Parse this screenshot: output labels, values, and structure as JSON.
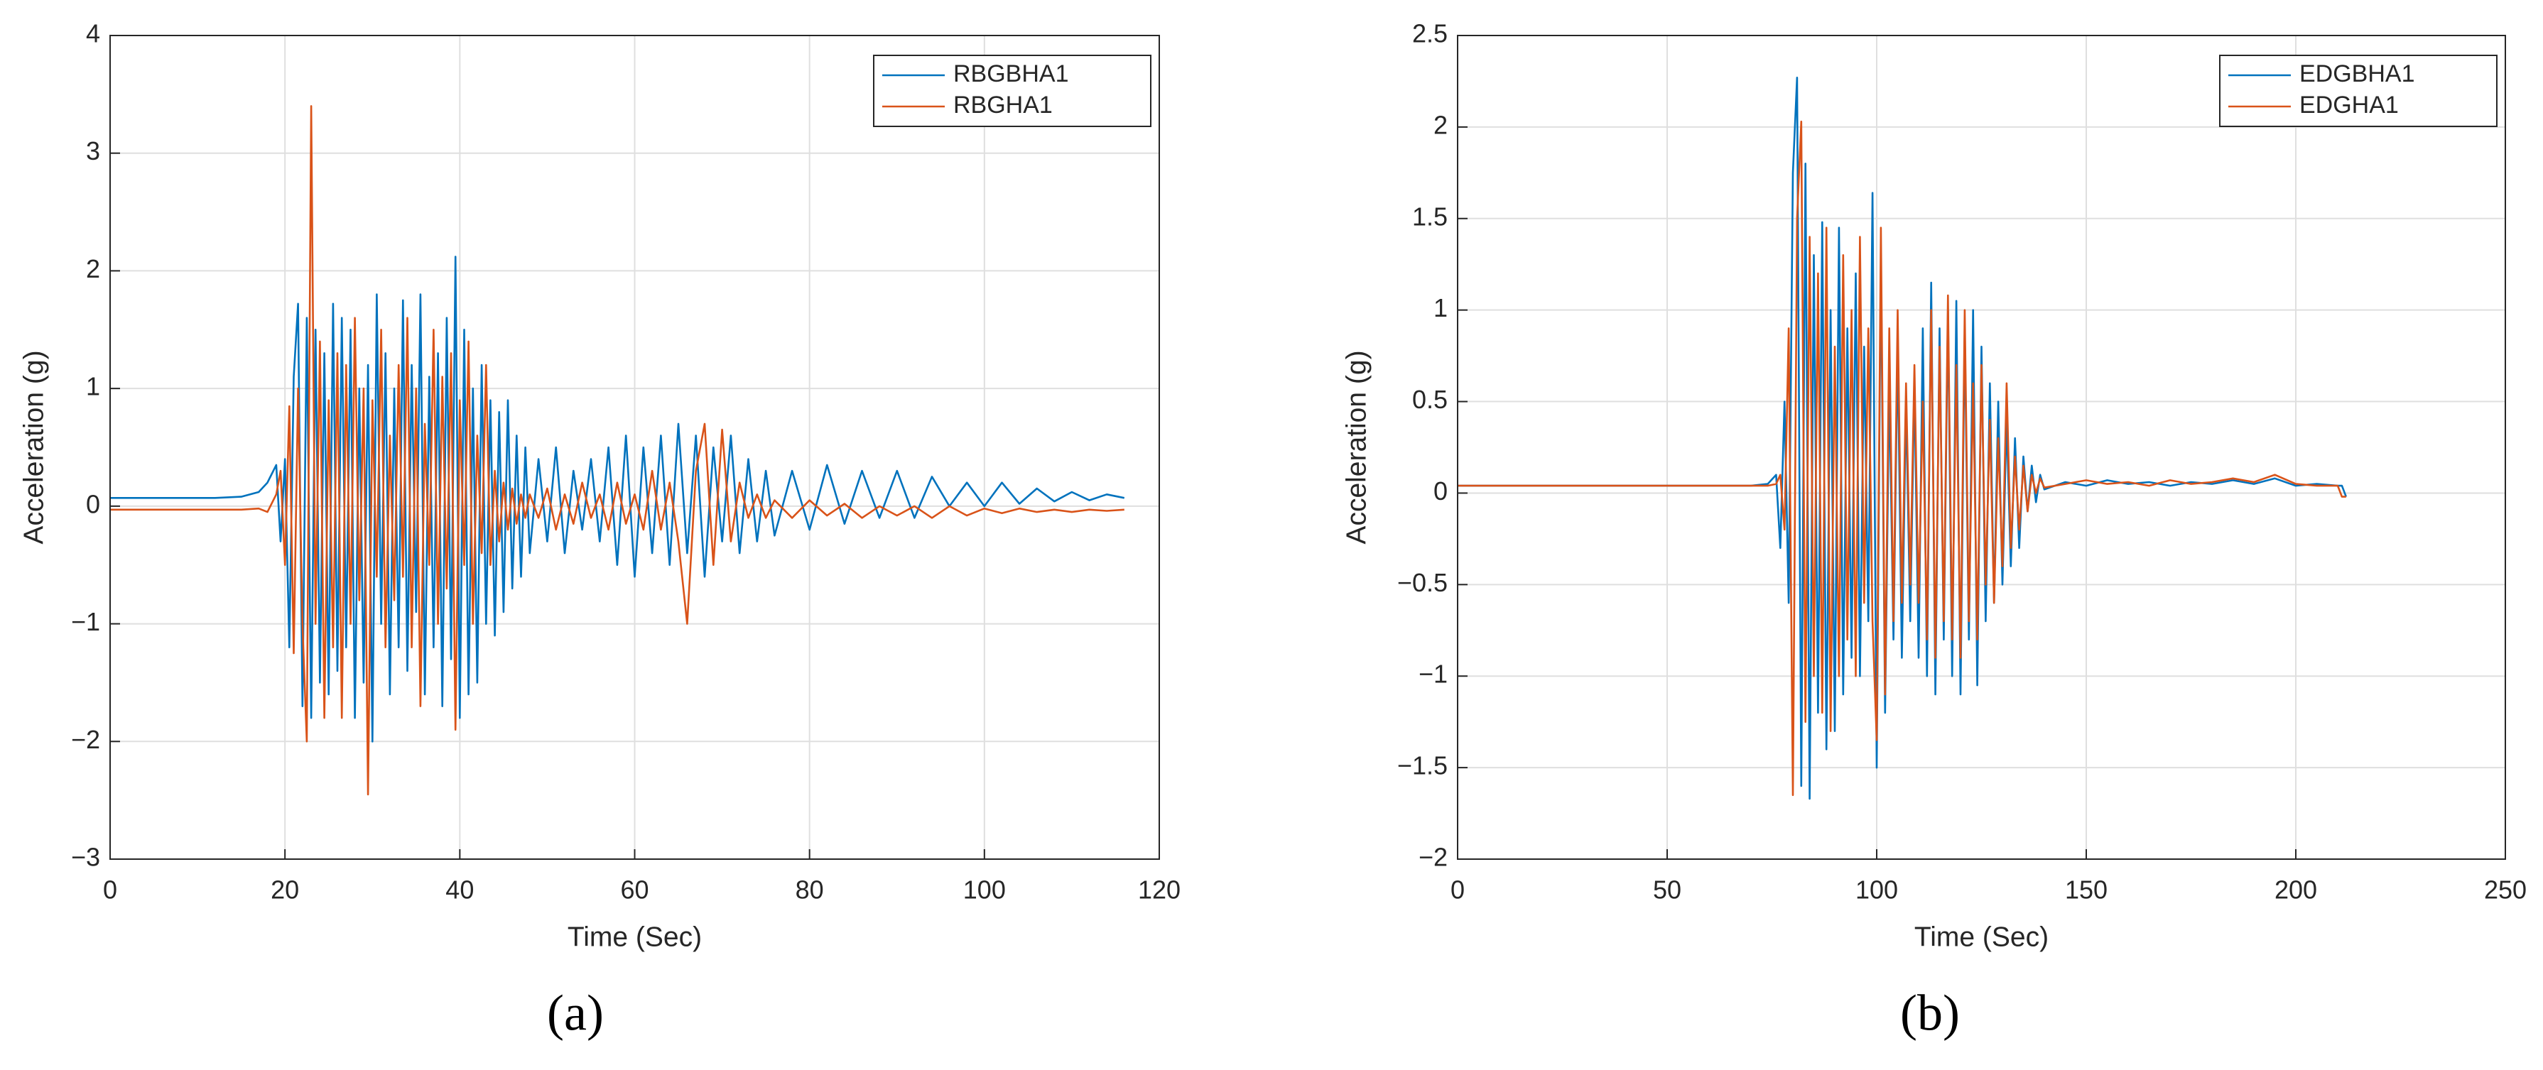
{
  "chart_data": [
    {
      "type": "line",
      "caption": "(a)",
      "xlabel": "Time (Sec)",
      "ylabel": "Acceleration (g)",
      "xlim": [
        0,
        120
      ],
      "xticks": [
        0,
        20,
        40,
        60,
        80,
        100,
        120
      ],
      "ylim": [
        -3,
        4
      ],
      "yticks": [
        {
          "value": -3,
          "label": "−3"
        },
        {
          "value": -2,
          "label": "−2"
        },
        {
          "value": -1,
          "label": "−1"
        },
        0,
        1,
        2,
        3,
        4
      ],
      "grid": true,
      "legend": "northeast",
      "x": [
        0,
        4,
        8,
        12,
        15,
        17,
        18,
        19,
        19.5,
        20,
        20.5,
        21,
        21.5,
        22,
        22.5,
        23,
        23.5,
        24,
        24.5,
        25,
        25.5,
        26,
        26.5,
        27,
        27.5,
        28,
        28.5,
        29,
        29.5,
        30,
        30.5,
        31,
        31.5,
        32,
        32.5,
        33,
        33.5,
        34,
        34.5,
        35,
        35.5,
        36,
        36.5,
        37,
        37.5,
        38,
        38.5,
        39,
        39.5,
        40,
        40.5,
        41,
        41.5,
        42,
        42.5,
        43,
        43.5,
        44,
        44.5,
        45,
        45.5,
        46,
        46.5,
        47,
        47.5,
        48,
        49,
        50,
        51,
        52,
        53,
        54,
        55,
        56,
        57,
        58,
        59,
        60,
        61,
        62,
        63,
        64,
        65,
        66,
        67,
        68,
        69,
        70,
        71,
        72,
        73,
        74,
        75,
        76,
        78,
        80,
        82,
        84,
        86,
        88,
        90,
        92,
        94,
        96,
        98,
        100,
        102,
        104,
        106,
        108,
        110,
        112,
        114,
        116
      ],
      "series": [
        {
          "name": "RBGBHA1",
          "color": "#0072bd",
          "values": [
            0.07,
            0.07,
            0.07,
            0.07,
            0.08,
            0.12,
            0.2,
            0.35,
            -0.3,
            0.4,
            -1.2,
            1.1,
            1.72,
            -1.7,
            1.6,
            -1.8,
            1.5,
            -1.5,
            1.3,
            -1.6,
            1.72,
            -1.4,
            1.6,
            -1.2,
            1.5,
            -1.8,
            1.0,
            -1.5,
            1.2,
            -2.0,
            1.8,
            -1.0,
            1.3,
            -1.6,
            1.0,
            -1.2,
            1.75,
            -1.4,
            1.2,
            -0.9,
            1.8,
            -1.6,
            1.1,
            -1.2,
            1.3,
            -1.7,
            1.6,
            -1.3,
            2.12,
            -1.8,
            1.5,
            -1.6,
            1.0,
            -1.5,
            1.2,
            -1.0,
            0.9,
            -1.1,
            0.8,
            -0.9,
            0.9,
            -0.7,
            0.6,
            -0.6,
            0.5,
            -0.4,
            0.4,
            -0.3,
            0.5,
            -0.4,
            0.3,
            -0.2,
            0.4,
            -0.3,
            0.5,
            -0.5,
            0.6,
            -0.6,
            0.5,
            -0.4,
            0.6,
            -0.5,
            0.7,
            -0.4,
            0.6,
            -0.6,
            0.5,
            -0.3,
            0.6,
            -0.4,
            0.4,
            -0.3,
            0.3,
            -0.25,
            0.3,
            -0.2,
            0.35,
            -0.15,
            0.3,
            -0.1,
            0.3,
            -0.1,
            0.25,
            0,
            0.2,
            0,
            0.2,
            0.02,
            0.15,
            0.04,
            0.12,
            0.05,
            0.1,
            0.07
          ]
        },
        {
          "name": "RBGHA1",
          "color": "#d95319",
          "values": [
            -0.03,
            -0.03,
            -0.03,
            -0.03,
            -0.03,
            -0.02,
            -0.05,
            0.1,
            0.3,
            -0.5,
            0.85,
            -1.25,
            1.0,
            -1.0,
            -2.0,
            3.4,
            -1.0,
            1.4,
            -1.8,
            0.9,
            -1.2,
            1.3,
            -1.8,
            1.2,
            -1.0,
            1.6,
            -0.8,
            1.0,
            -2.45,
            0.9,
            -0.6,
            1.5,
            -1.2,
            0.6,
            -0.8,
            1.2,
            -0.6,
            1.6,
            -1.2,
            1.0,
            -1.7,
            0.7,
            -0.5,
            1.5,
            -1.0,
            1.1,
            -0.7,
            1.3,
            -1.9,
            0.9,
            -0.5,
            1.4,
            -1.0,
            0.6,
            -0.4,
            1.2,
            -0.5,
            0.3,
            -0.3,
            0.2,
            -0.2,
            0.15,
            -0.15,
            0.1,
            -0.1,
            0.1,
            -0.1,
            0.15,
            -0.2,
            0.1,
            -0.15,
            0.2,
            -0.1,
            0.1,
            -0.2,
            0.2,
            -0.15,
            0.1,
            -0.2,
            0.3,
            -0.2,
            0.2,
            -0.3,
            -1.0,
            0.3,
            0.7,
            -0.5,
            0.65,
            -0.3,
            0.2,
            -0.1,
            0.1,
            -0.1,
            0.05,
            -0.1,
            0.05,
            -0.08,
            0.02,
            -0.1,
            0,
            -0.08,
            0,
            -0.1,
            0,
            -0.08,
            -0.02,
            -0.06,
            -0.02,
            -0.05,
            -0.03,
            -0.05,
            -0.03,
            -0.04,
            -0.03
          ]
        }
      ]
    },
    {
      "type": "line",
      "caption": "(b)",
      "xlabel": "Time (Sec)",
      "ylabel": "Acceleration (g)",
      "xlim": [
        0,
        250
      ],
      "xticks": [
        0,
        50,
        100,
        150,
        200,
        250
      ],
      "ylim": [
        -2,
        2.5
      ],
      "yticks": [
        {
          "value": -2,
          "label": "−2"
        },
        {
          "value": -1.5,
          "label": "−1.5"
        },
        {
          "value": -1,
          "label": "−1"
        },
        {
          "value": -0.5,
          "label": "−0.5"
        },
        0,
        0.5,
        1,
        1.5,
        2,
        2.5
      ],
      "grid": true,
      "legend": "northeast",
      "x": [
        0,
        10,
        20,
        30,
        40,
        50,
        60,
        70,
        74,
        76,
        77,
        78,
        79,
        80,
        81,
        82,
        83,
        84,
        85,
        86,
        87,
        88,
        89,
        90,
        91,
        92,
        93,
        94,
        95,
        96,
        97,
        98,
        99,
        100,
        101,
        102,
        103,
        104,
        105,
        106,
        107,
        108,
        109,
        110,
        111,
        112,
        113,
        114,
        115,
        116,
        117,
        118,
        119,
        120,
        121,
        122,
        123,
        124,
        125,
        126,
        127,
        128,
        129,
        130,
        131,
        132,
        133,
        134,
        135,
        136,
        137,
        138,
        139,
        140,
        145,
        150,
        155,
        160,
        165,
        170,
        175,
        180,
        185,
        190,
        195,
        200,
        205,
        210,
        211,
        212
      ],
      "series": [
        {
          "name": "EDGBHA1",
          "color": "#0072bd",
          "values": [
            0.04,
            0.04,
            0.04,
            0.04,
            0.04,
            0.04,
            0.04,
            0.04,
            0.05,
            0.1,
            -0.3,
            0.5,
            -0.6,
            1.75,
            2.27,
            -1.6,
            1.8,
            -1.67,
            1.3,
            -1.2,
            1.48,
            -1.4,
            1.0,
            -1.3,
            1.45,
            -1.1,
            0.9,
            -0.9,
            1.2,
            -1.0,
            0.8,
            -0.7,
            1.64,
            -1.5,
            1.3,
            -1.2,
            0.6,
            -0.8,
            0.8,
            -0.9,
            0.5,
            -0.7,
            0.6,
            -0.9,
            0.9,
            -1.0,
            1.15,
            -1.1,
            0.9,
            -0.8,
            1.0,
            -1.0,
            1.05,
            -1.1,
            0.9,
            -0.8,
            1.0,
            -1.05,
            0.8,
            -0.7,
            0.6,
            -0.6,
            0.5,
            -0.5,
            0.4,
            -0.4,
            0.3,
            -0.3,
            0.2,
            -0.1,
            0.15,
            -0.05,
            0.1,
            0.02,
            0.06,
            0.04,
            0.07,
            0.05,
            0.06,
            0.04,
            0.06,
            0.05,
            0.07,
            0.05,
            0.08,
            0.04,
            0.05,
            0.04,
            0.04,
            -0.02
          ]
        },
        {
          "name": "EDGHA1",
          "color": "#d95319",
          "values": [
            0.04,
            0.04,
            0.04,
            0.04,
            0.04,
            0.04,
            0.04,
            0.04,
            0.04,
            0.05,
            0.1,
            -0.2,
            0.9,
            -1.65,
            1.5,
            2.03,
            -1.25,
            1.4,
            -1.0,
            1.2,
            -1.2,
            1.45,
            -1.3,
            0.8,
            -1.0,
            1.3,
            -0.8,
            1.0,
            -1.0,
            1.4,
            -0.6,
            0.9,
            -0.7,
            -1.35,
            1.45,
            -1.1,
            0.9,
            -0.7,
            1.0,
            -0.6,
            0.6,
            -0.5,
            0.7,
            -0.6,
            0.5,
            -0.8,
            1.0,
            -0.9,
            0.8,
            -0.7,
            1.08,
            -0.8,
            0.7,
            -0.9,
            1.0,
            -0.7,
            0.6,
            -0.8,
            0.7,
            -0.5,
            0.4,
            -0.6,
            0.3,
            -0.4,
            0.6,
            -0.3,
            0.2,
            -0.2,
            0.15,
            -0.1,
            0.1,
            0,
            0.08,
            0.03,
            0.05,
            0.07,
            0.05,
            0.06,
            0.04,
            0.07,
            0.05,
            0.06,
            0.08,
            0.06,
            0.1,
            0.05,
            0.04,
            0.04,
            -0.02,
            -0.02
          ]
        }
      ]
    }
  ]
}
